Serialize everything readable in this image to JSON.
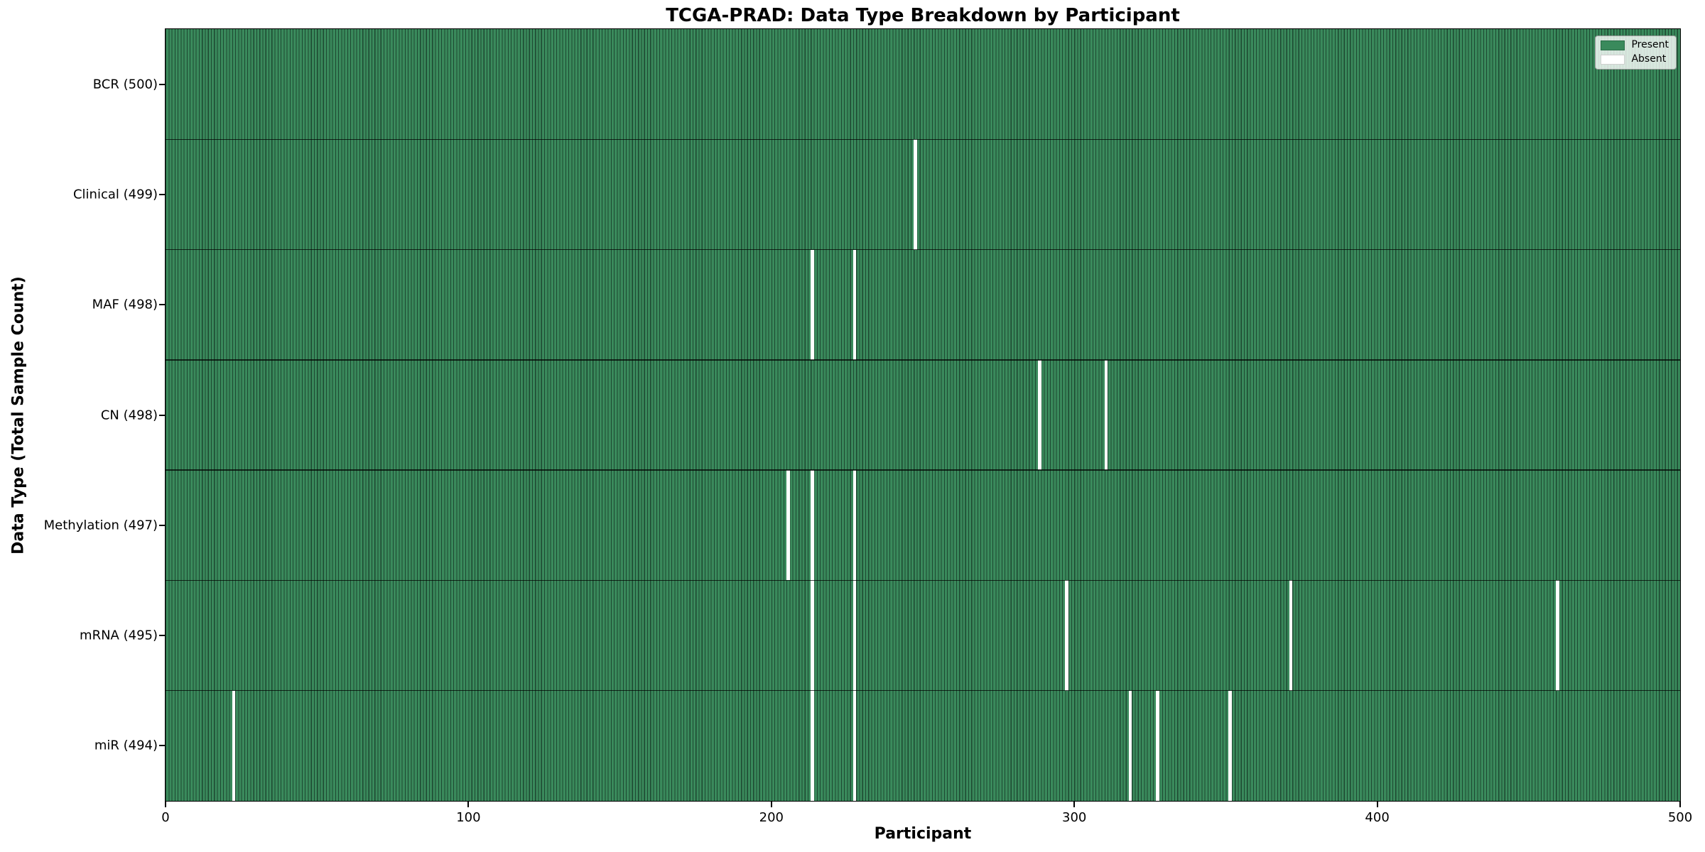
{
  "title": "TCGA-PRAD: Data Type Breakdown by Participant",
  "x_axis": {
    "label": "Participant",
    "ticks": [
      0,
      100,
      200,
      300,
      400,
      500
    ],
    "min": 0,
    "max": 500
  },
  "y_axis": {
    "label": "Data Type (Total Sample Count)"
  },
  "legend": {
    "items": [
      {
        "label": "Present",
        "color": "#3a8a5c"
      },
      {
        "label": "Absent",
        "color": "#ffffff"
      }
    ]
  },
  "colors": {
    "present_fill": "#3a8a5c",
    "cell_edge": "#1d4831",
    "absent_fill": "#ffffff",
    "row_divider": "#10281a",
    "background": "#ffffff"
  },
  "chart_data": {
    "type": "heatmap",
    "title": "TCGA-PRAD: Data Type Breakdown by Participant",
    "xlabel": "Participant",
    "ylabel": "Data Type (Total Sample Count)",
    "xlim": [
      0,
      500
    ],
    "x_ticks": [
      0,
      100,
      200,
      300,
      400,
      500
    ],
    "n_participants": 500,
    "legend": {
      "present": "Present",
      "absent": "Absent"
    },
    "rows": [
      {
        "label": "BCR (500)",
        "data_type": "BCR",
        "total": 500,
        "absent_participants": []
      },
      {
        "label": "Clinical (499)",
        "data_type": "Clinical",
        "total": 499,
        "absent_participants": [
          247
        ]
      },
      {
        "label": "MAF (498)",
        "data_type": "MAF",
        "total": 498,
        "absent_participants": [
          213,
          227
        ]
      },
      {
        "label": "CN (498)",
        "data_type": "CN",
        "total": 498,
        "absent_participants": [
          288,
          310
        ]
      },
      {
        "label": "Methylation (497)",
        "data_type": "Methylation",
        "total": 497,
        "absent_participants": [
          205,
          213,
          227
        ]
      },
      {
        "label": "mRNA (495)",
        "data_type": "mRNA",
        "total": 495,
        "absent_participants": [
          213,
          227,
          297,
          371,
          459
        ]
      },
      {
        "label": "miR (494)",
        "data_type": "miR",
        "total": 494,
        "absent_participants": [
          22,
          213,
          227,
          318,
          327,
          351
        ]
      }
    ]
  }
}
